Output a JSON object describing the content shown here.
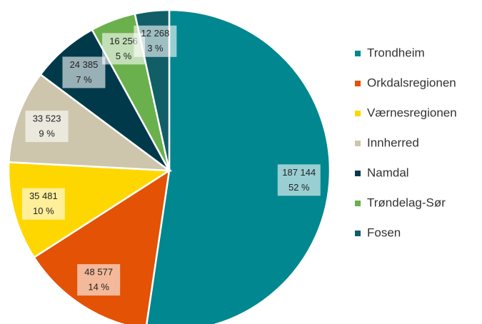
{
  "chart_data": {
    "type": "pie",
    "categories": [
      "Trondheim",
      "Orkdalsregionen",
      "Værnesregionen",
      "Innherred",
      "Namdal",
      "Trøndelag-Sør",
      "Fosen"
    ],
    "values": [
      187144,
      48577,
      35481,
      33523,
      24385,
      16256,
      12268
    ],
    "value_labels": [
      "187 144",
      "48 577",
      "35 481",
      "33 523",
      "24 385",
      "16 256",
      "12 268"
    ],
    "percent_labels": [
      "52 %",
      "14 %",
      "10 %",
      "9 %",
      "7 %",
      "5 %",
      "3 %"
    ],
    "colors": [
      "#00878f",
      "#e35205",
      "#ffd700",
      "#cdc6ac",
      "#003a4a",
      "#6ab04c",
      "#115e67"
    ],
    "legend": "right"
  }
}
